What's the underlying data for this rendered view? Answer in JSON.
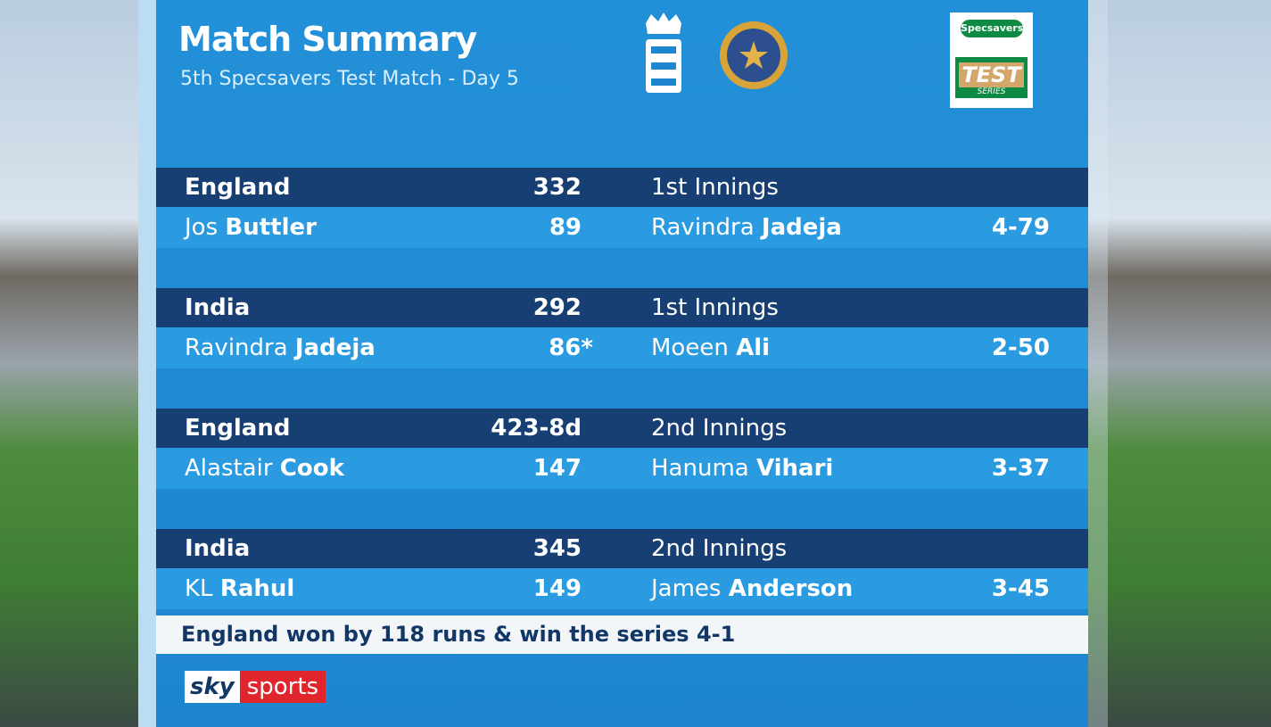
{
  "header": {
    "title": "Match Summary",
    "subtitle": "5th Specsavers Test Match - Day 5"
  },
  "sponsor": {
    "brand": "Specsavers",
    "word": "TEST",
    "series": "SERIES"
  },
  "innings": [
    {
      "team": "England",
      "score": "332",
      "label": "1st Innings",
      "batter": {
        "first": "Jos",
        "last": "Buttler",
        "runs": "89"
      },
      "bowler": {
        "first": "Ravindra",
        "last": "Jadeja",
        "figures": "4-79"
      }
    },
    {
      "team": "India",
      "score": "292",
      "label": "1st Innings",
      "batter": {
        "first": "Ravindra",
        "last": "Jadeja",
        "runs": "86*"
      },
      "bowler": {
        "first": "Moeen",
        "last": "Ali",
        "figures": "2-50"
      }
    },
    {
      "team": "England",
      "score": "423-8d",
      "label": "2nd Innings",
      "batter": {
        "first": "Alastair",
        "last": "Cook",
        "runs": "147"
      },
      "bowler": {
        "first": "Hanuma",
        "last": "Vihari",
        "figures": "3-37"
      }
    },
    {
      "team": "India",
      "score": "345",
      "label": "2nd Innings",
      "batter": {
        "first": "KL",
        "last": "Rahul",
        "runs": "149"
      },
      "bowler": {
        "first": "James",
        "last": "Anderson",
        "figures": "3-45"
      }
    }
  ],
  "result": "England won by 118 runs & win the series 4-1",
  "broadcaster": {
    "sky": "sky",
    "sports": "sports"
  }
}
